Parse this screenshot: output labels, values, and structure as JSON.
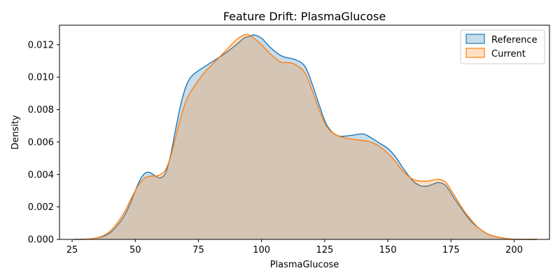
{
  "chart_data": {
    "type": "area",
    "title": "Feature Drift: PlasmaGlucose",
    "xlabel": "PlasmaGlucose",
    "ylabel": "Density",
    "xlim": [
      20,
      214
    ],
    "ylim": [
      0,
      0.0132
    ],
    "xticks": [
      25,
      50,
      75,
      100,
      125,
      150,
      175,
      200
    ],
    "xtick_labels": [
      "25",
      "50",
      "75",
      "100",
      "125",
      "150",
      "175",
      "200"
    ],
    "yticks": [
      0,
      0.002,
      0.004,
      0.006,
      0.008,
      0.01,
      0.012
    ],
    "ytick_labels": [
      "0.000",
      "0.002",
      "0.004",
      "0.006",
      "0.008",
      "0.010",
      "0.012"
    ],
    "grid": false,
    "legend_position": "top-right",
    "series": [
      {
        "name": "Reference",
        "color": "#1f77b4",
        "fill": "#aec7e8",
        "x": [
          26,
          30,
          35,
          40,
          45,
          48,
          50,
          52,
          54,
          56,
          58,
          60,
          62,
          64,
          66,
          68,
          70,
          72,
          75,
          78,
          80,
          85,
          90,
          93,
          95,
          97,
          100,
          103,
          106,
          108,
          110,
          113,
          117,
          120,
          123,
          126,
          130,
          135,
          140,
          143,
          146,
          150,
          153,
          156,
          160,
          163,
          166,
          170,
          173,
          176,
          180,
          183,
          186,
          190,
          195,
          200,
          205,
          209
        ],
        "y": [
          0.0,
          1e-05,
          0.0001,
          0.0004,
          0.0013,
          0.0022,
          0.003,
          0.0037,
          0.0041,
          0.0041,
          0.0039,
          0.0038,
          0.0041,
          0.0052,
          0.0068,
          0.0083,
          0.0094,
          0.01,
          0.0104,
          0.0107,
          0.0109,
          0.0114,
          0.012,
          0.0124,
          0.0125,
          0.0126,
          0.0124,
          0.0119,
          0.0115,
          0.0113,
          0.0112,
          0.0111,
          0.0107,
          0.0096,
          0.0082,
          0.007,
          0.0064,
          0.0064,
          0.0065,
          0.0063,
          0.006,
          0.0056,
          0.0051,
          0.0044,
          0.0036,
          0.0033,
          0.0033,
          0.0035,
          0.0033,
          0.0026,
          0.0017,
          0.0011,
          0.0007,
          0.0003,
          0.0001,
          1e-05,
          0.0,
          0.0
        ]
      },
      {
        "name": "Current",
        "color": "#ff7f0e",
        "fill": "#ffbb78",
        "x": [
          26,
          30,
          35,
          40,
          45,
          48,
          50,
          52,
          54,
          56,
          58,
          60,
          62,
          64,
          66,
          68,
          70,
          72,
          75,
          78,
          80,
          85,
          90,
          93,
          95,
          97,
          100,
          103,
          106,
          108,
          110,
          113,
          117,
          120,
          123,
          126,
          130,
          135,
          140,
          143,
          146,
          150,
          153,
          156,
          160,
          163,
          166,
          170,
          173,
          176,
          180,
          183,
          186,
          190,
          195,
          200,
          205,
          209
        ],
        "y": [
          0.0,
          1e-05,
          0.0001,
          0.0005,
          0.0015,
          0.0024,
          0.003,
          0.0035,
          0.0038,
          0.0039,
          0.0039,
          0.004,
          0.0043,
          0.0051,
          0.0063,
          0.0075,
          0.0085,
          0.0091,
          0.0098,
          0.0104,
          0.0107,
          0.0115,
          0.0123,
          0.0126,
          0.0126,
          0.0124,
          0.012,
          0.0115,
          0.0111,
          0.0109,
          0.0109,
          0.0108,
          0.0103,
          0.0092,
          0.0079,
          0.0069,
          0.0064,
          0.0062,
          0.0061,
          0.006,
          0.0058,
          0.0053,
          0.0048,
          0.0042,
          0.0037,
          0.0036,
          0.0036,
          0.0037,
          0.0035,
          0.0028,
          0.0018,
          0.0012,
          0.0007,
          0.0003,
          0.0001,
          1e-05,
          0.0,
          0.0
        ]
      }
    ]
  }
}
